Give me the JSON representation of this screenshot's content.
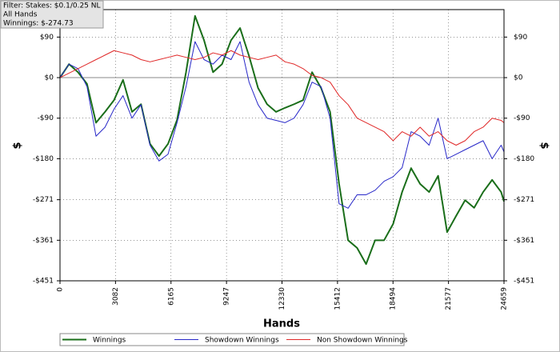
{
  "filter": [
    "Filter: Stakes: $0.1/0.25 NL",
    "All Hands",
    "Winnings: $-274.73"
  ],
  "chart_data": {
    "type": "line",
    "xlabel": "Hands",
    "ylabel": "$",
    "x": [
      0,
      500,
      1000,
      1500,
      2000,
      2500,
      3000,
      3500,
      4000,
      4500,
      5000,
      5500,
      6000,
      6500,
      7000,
      7500,
      8000,
      8500,
      9000,
      9500,
      10000,
      10500,
      11000,
      11500,
      12000,
      12500,
      13000,
      13500,
      14000,
      14500,
      15000,
      15500,
      16000,
      16500,
      17000,
      17500,
      18000,
      18500,
      19000,
      19500,
      20000,
      20500,
      21000,
      21500,
      22000,
      22500,
      23000,
      23500,
      24000,
      24500,
      24659
    ],
    "series": [
      {
        "name": "Winnings",
        "color": "#1a6e1a",
        "width": 2,
        "values": [
          0,
          30,
          12,
          -14,
          -100,
          -76,
          -50,
          -5,
          -76,
          -59,
          -147,
          -174,
          -147,
          -94,
          12,
          137,
          83,
          12,
          30,
          83,
          110,
          48,
          -23,
          -59,
          -76,
          -67,
          -59,
          -50,
          12,
          -23,
          -76,
          -236,
          -361,
          -378,
          -414,
          -361,
          -361,
          -325,
          -254,
          -201,
          -236,
          -254,
          -218,
          -343,
          -307,
          -272,
          -289,
          -254,
          -227,
          -254,
          -275
        ]
      },
      {
        "name": "Showdown Winnings",
        "color": "#2828c8",
        "width": 1,
        "values": [
          0,
          30,
          20,
          -20,
          -130,
          -110,
          -70,
          -40,
          -90,
          -60,
          -150,
          -185,
          -170,
          -100,
          -20,
          80,
          40,
          30,
          50,
          40,
          80,
          -10,
          -60,
          -90,
          -95,
          -100,
          -90,
          -60,
          -10,
          -20,
          -90,
          -280,
          -290,
          -260,
          -260,
          -250,
          -230,
          -220,
          -200,
          -120,
          -130,
          -150,
          -90,
          -180,
          -170,
          -160,
          -150,
          -140,
          -180,
          -150,
          -165
        ]
      },
      {
        "name": "Non Showdown Winnings",
        "color": "#e02828",
        "width": 1,
        "values": [
          0,
          10,
          20,
          30,
          40,
          50,
          60,
          55,
          50,
          40,
          35,
          40,
          45,
          50,
          45,
          40,
          45,
          55,
          50,
          60,
          50,
          45,
          40,
          45,
          50,
          35,
          30,
          20,
          5,
          0,
          -10,
          -40,
          -60,
          -90,
          -100,
          -110,
          -120,
          -140,
          -120,
          -130,
          -110,
          -130,
          -120,
          -140,
          -150,
          -140,
          -120,
          -110,
          -90,
          -95,
          -100
        ]
      }
    ],
    "xlim": [
      0,
      24659
    ],
    "xticks": [
      0,
      3082,
      6165,
      9247,
      12330,
      15412,
      18494,
      21577,
      24659
    ],
    "ylim": [
      -451,
      151
    ],
    "yticks": [
      {
        "value": 90,
        "label": "$90"
      },
      {
        "value": 0,
        "label": "$0"
      },
      {
        "value": -90,
        "label": "-$90"
      },
      {
        "value": -180,
        "label": "-$180"
      },
      {
        "value": -271,
        "label": "-$271"
      },
      {
        "value": -361,
        "label": "-$361"
      },
      {
        "value": -451,
        "label": "-$451"
      }
    ],
    "grid": true
  }
}
